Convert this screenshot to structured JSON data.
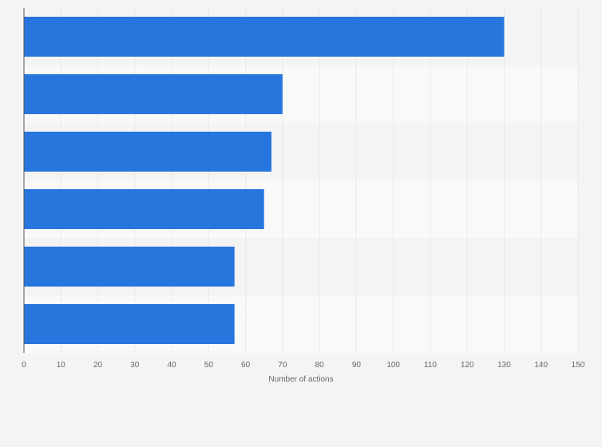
{
  "chart_data": {
    "type": "bar",
    "orientation": "horizontal",
    "categories": [
      "",
      "",
      "",
      "",
      "",
      ""
    ],
    "values": [
      130,
      70,
      67,
      65,
      57,
      57
    ],
    "title": "",
    "xlabel": "Number of actions",
    "ylabel": "",
    "xlim": [
      0,
      150
    ],
    "xticks": [
      "0",
      "10",
      "20",
      "30",
      "40",
      "50",
      "60",
      "70",
      "80",
      "90",
      "100",
      "110",
      "120",
      "130",
      "140",
      "150"
    ],
    "grid": true,
    "legend": "none",
    "bar_color": "#2776dd",
    "band_colors": [
      "#f4f4f4",
      "#f9f9f9"
    ]
  }
}
